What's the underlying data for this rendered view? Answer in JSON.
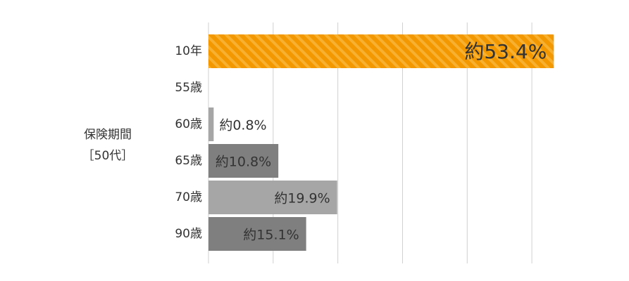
{
  "chart_data": {
    "type": "hbar",
    "ylabel": [
      "保険期間",
      "［50代］"
    ],
    "categories": [
      "10年",
      "55歳",
      "60歳",
      "65歳",
      "70歳",
      "90歳"
    ],
    "values": [
      53.4,
      null,
      0.8,
      10.8,
      19.9,
      15.1
    ],
    "value_labels": [
      "約53.4%",
      null,
      "約0.8%",
      "約10.8%",
      "約19.9%",
      "約15.1%"
    ],
    "colors": [
      "#f39800",
      null,
      "#a6a6a6",
      "#7f7f7f",
      "#a6a6a6",
      "#7f7f7f"
    ],
    "hatch": [
      true,
      false,
      false,
      false,
      false,
      false
    ],
    "xlim": [
      0,
      55
    ],
    "xticks": [
      0,
      10,
      20,
      30,
      40,
      50
    ],
    "grid": true
  }
}
